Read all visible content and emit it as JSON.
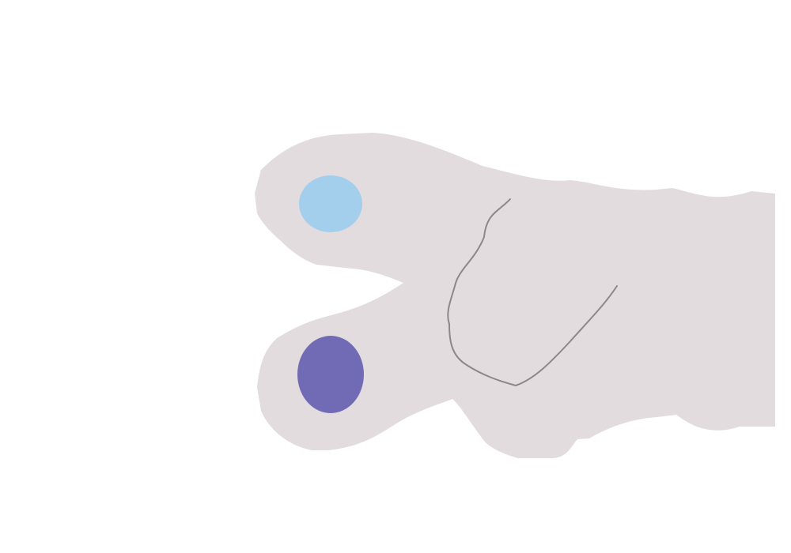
{
  "colors": {
    "background": "#ffffff",
    "shape_fill": "#e2dcdf",
    "fold_line": "#8c8888",
    "upper_dot": "#a3cfec",
    "lower_dot": "#716bb6"
  },
  "shapes": {
    "main_shape": "rounded-shape",
    "upper_dot": "ellipse",
    "lower_dot": "ellipse"
  }
}
